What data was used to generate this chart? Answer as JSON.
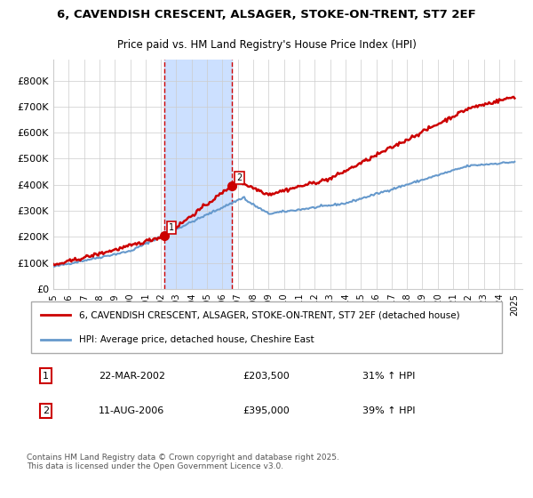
{
  "title1": "6, CAVENDISH CRESCENT, ALSAGER, STOKE-ON-TRENT, ST7 2EF",
  "title2": "Price paid vs. HM Land Registry's House Price Index (HPI)",
  "legend_line1": "6, CAVENDISH CRESCENT, ALSAGER, STOKE-ON-TRENT, ST7 2EF (detached house)",
  "legend_line2": "HPI: Average price, detached house, Cheshire East",
  "sale1_label": "1",
  "sale1_date": "22-MAR-2002",
  "sale1_price": "£203,500",
  "sale1_hpi": "31% ↑ HPI",
  "sale2_label": "2",
  "sale2_date": "11-AUG-2006",
  "sale2_price": "£395,000",
  "sale2_hpi": "39% ↑ HPI",
  "footer": "Contains HM Land Registry data © Crown copyright and database right 2025.\nThis data is licensed under the Open Government Licence v3.0.",
  "sale1_x": 2002.23,
  "sale1_y": 203500,
  "sale2_x": 2006.62,
  "sale2_y": 395000,
  "shade_x1": 2002.23,
  "shade_x2": 2006.62,
  "red_color": "#cc0000",
  "blue_color": "#6699cc",
  "shade_color": "#cce0ff",
  "grid_color": "#cccccc",
  "background_color": "#ffffff",
  "ylim": [
    0,
    880000
  ],
  "xlim_start": 1995,
  "xlim_end": 2025.5,
  "yticks": [
    0,
    100000,
    200000,
    300000,
    400000,
    500000,
    600000,
    700000,
    800000
  ],
  "ytick_labels": [
    "£0",
    "£100K",
    "£200K",
    "£300K",
    "£400K",
    "£500K",
    "£600K",
    "£700K",
    "£800K"
  ],
  "xtick_years": [
    1995,
    1996,
    1997,
    1998,
    1999,
    2000,
    2001,
    2002,
    2003,
    2004,
    2005,
    2006,
    2007,
    2008,
    2009,
    2010,
    2011,
    2012,
    2013,
    2014,
    2015,
    2016,
    2017,
    2018,
    2019,
    2020,
    2021,
    2022,
    2023,
    2024,
    2025
  ]
}
